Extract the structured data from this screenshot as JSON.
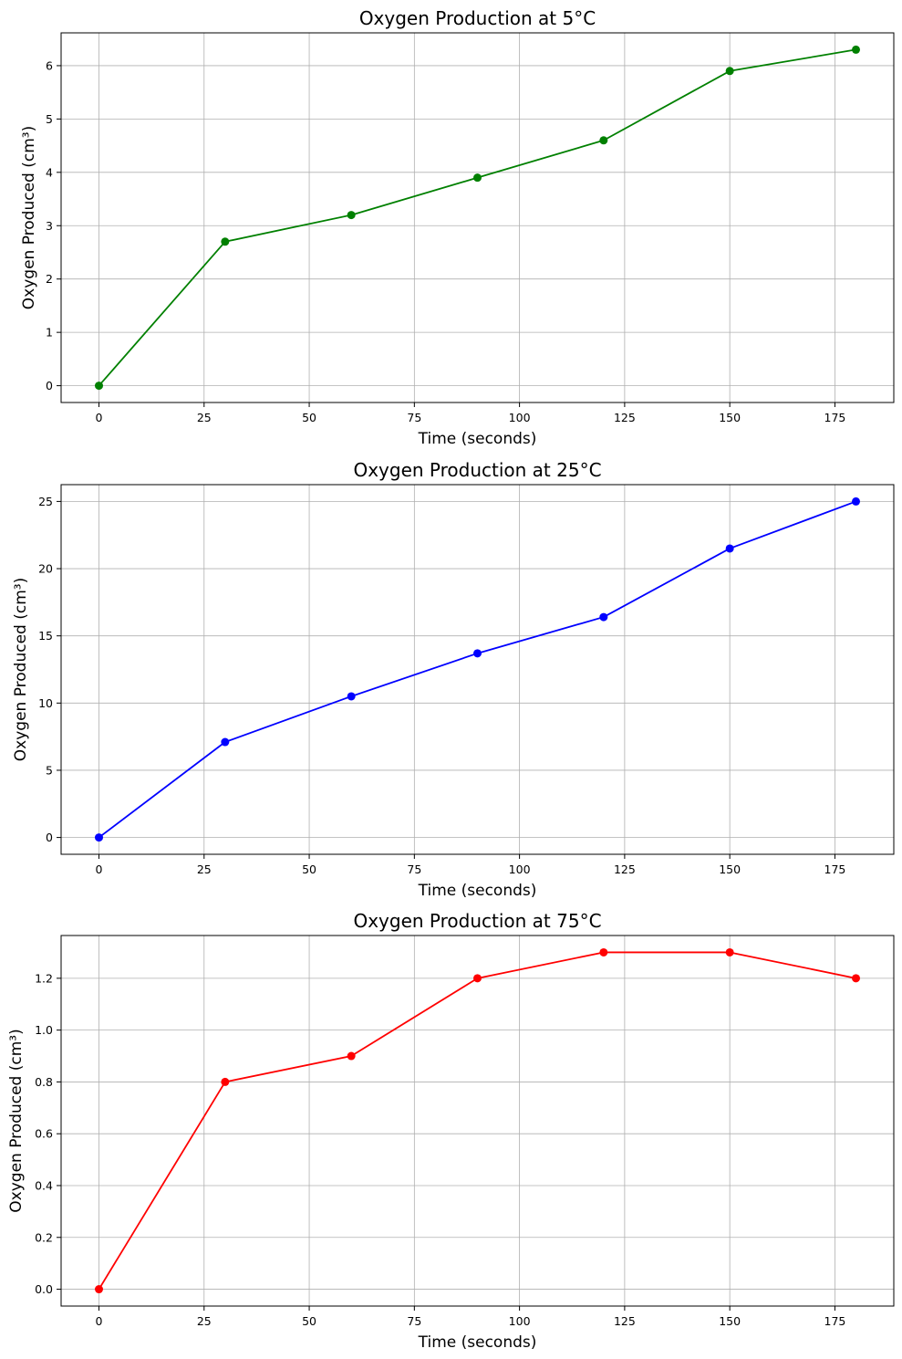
{
  "chart_data": [
    {
      "type": "line",
      "title": "Oxygen Production at 5°C",
      "xlabel": "Time (seconds)",
      "ylabel": "Oxygen Produced (cm³)",
      "x": [
        0,
        30,
        60,
        90,
        120,
        150,
        180
      ],
      "series": [
        {
          "values": [
            0,
            2.7,
            3.2,
            3.9,
            4.6,
            5.9,
            6.3
          ],
          "color": "#008000"
        }
      ],
      "xlim": [
        -9,
        189
      ],
      "ylim": [
        -0.315,
        6.615
      ],
      "xticks": [
        0,
        25,
        50,
        75,
        100,
        125,
        150,
        175
      ],
      "yticks": [
        0,
        1,
        2,
        3,
        4,
        5,
        6
      ],
      "ytick_labels": [
        "0",
        "1",
        "2",
        "3",
        "4",
        "5",
        "6"
      ],
      "grid": true,
      "marker": "circle"
    },
    {
      "type": "line",
      "title": "Oxygen Production at 25°C",
      "xlabel": "Time (seconds)",
      "ylabel": "Oxygen Produced (cm³)",
      "x": [
        0,
        30,
        60,
        90,
        120,
        150,
        180
      ],
      "series": [
        {
          "values": [
            0,
            7.1,
            10.5,
            13.7,
            16.4,
            21.5,
            25.0
          ],
          "color": "#0000ff"
        }
      ],
      "xlim": [
        -9,
        189
      ],
      "ylim": [
        -1.25,
        26.25
      ],
      "xticks": [
        0,
        25,
        50,
        75,
        100,
        125,
        150,
        175
      ],
      "yticks": [
        0,
        5,
        10,
        15,
        20,
        25
      ],
      "ytick_labels": [
        "0",
        "5",
        "10",
        "15",
        "20",
        "25"
      ],
      "grid": true,
      "marker": "circle"
    },
    {
      "type": "line",
      "title": "Oxygen Production at 75°C",
      "xlabel": "Time (seconds)",
      "ylabel": "Oxygen Produced (cm³)",
      "x": [
        0,
        30,
        60,
        90,
        120,
        150,
        180
      ],
      "series": [
        {
          "values": [
            0,
            0.8,
            0.9,
            1.2,
            1.3,
            1.3,
            1.2
          ],
          "color": "#ff0000"
        }
      ],
      "xlim": [
        -9,
        189
      ],
      "ylim": [
        -0.065,
        1.365
      ],
      "xticks": [
        0,
        25,
        50,
        75,
        100,
        125,
        150,
        175
      ],
      "yticks": [
        0,
        0.2,
        0.4,
        0.6,
        0.8,
        1.0,
        1.2
      ],
      "ytick_labels": [
        "0.0",
        "0.2",
        "0.4",
        "0.6",
        "0.8",
        "1.0",
        "1.2"
      ],
      "grid": true,
      "marker": "circle"
    }
  ]
}
